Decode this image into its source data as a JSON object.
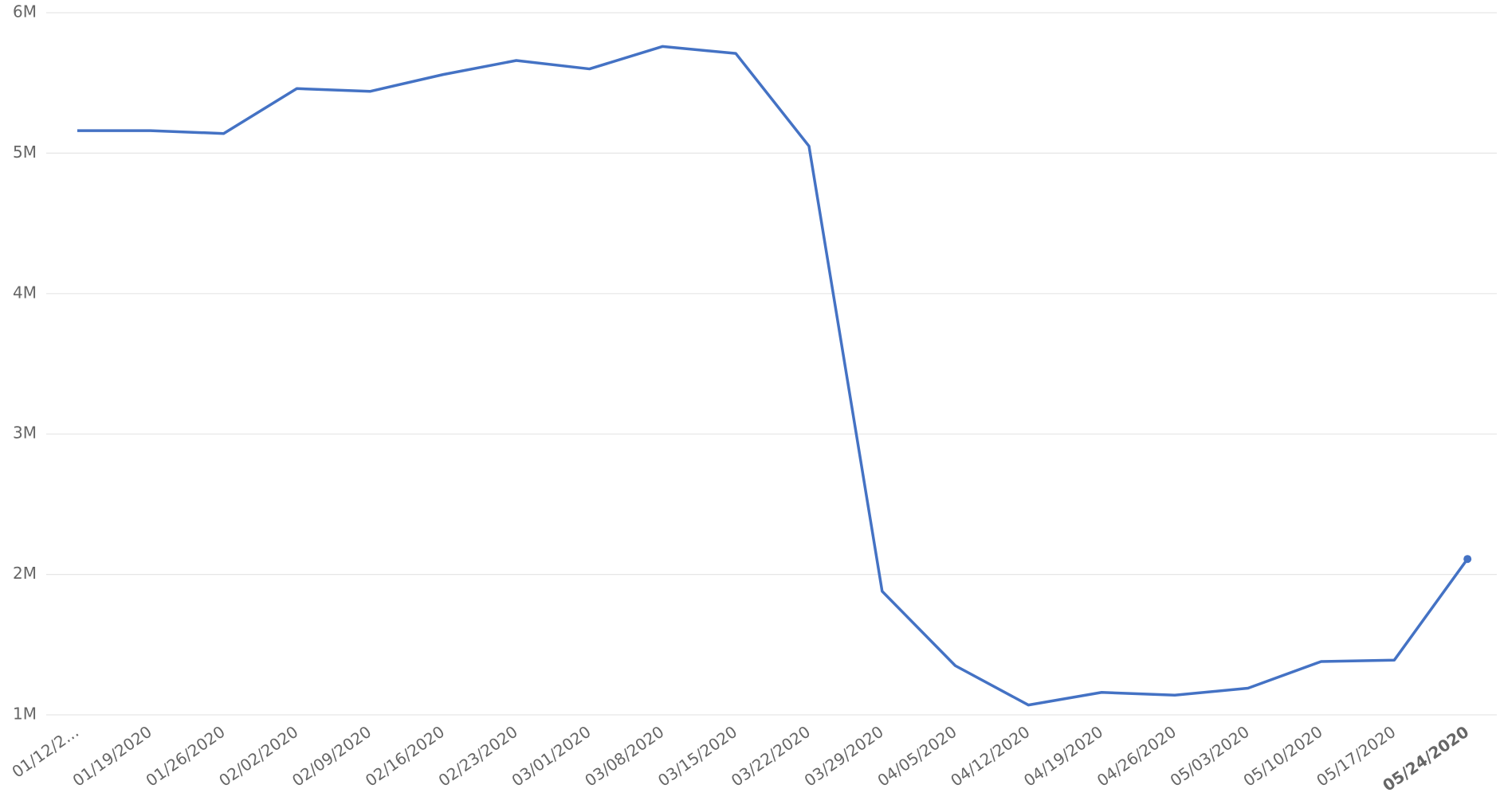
{
  "chart_data": {
    "type": "line",
    "categories": [
      "01/12/2...",
      "01/19/2020",
      "01/26/2020",
      "02/02/2020",
      "02/09/2020",
      "02/16/2020",
      "02/23/2020",
      "03/01/2020",
      "03/08/2020",
      "03/15/2020",
      "03/22/2020",
      "03/29/2020",
      "04/05/2020",
      "04/12/2020",
      "04/19/2020",
      "04/26/2020",
      "05/03/2020",
      "05/10/2020",
      "05/17/2020",
      "05/24/2020"
    ],
    "series": [
      {
        "color": "#4472c4",
        "values": [
          5160000,
          5160000,
          5140000,
          5460000,
          5440000,
          5560000,
          5660000,
          5600000,
          5760000,
          5710000,
          5050000,
          1880000,
          1350000,
          1070000,
          1160000,
          1140000,
          1190000,
          1380000,
          1390000,
          2110000
        ]
      }
    ],
    "ylim": [
      1000000,
      6000000
    ],
    "yticks": [
      {
        "value": 1000000,
        "label": "1M"
      },
      {
        "value": 2000000,
        "label": "2M"
      },
      {
        "value": 3000000,
        "label": "3M"
      },
      {
        "value": 4000000,
        "label": "4M"
      },
      {
        "value": 5000000,
        "label": "5M"
      },
      {
        "value": 6000000,
        "label": "6M"
      }
    ],
    "grid": true
  }
}
